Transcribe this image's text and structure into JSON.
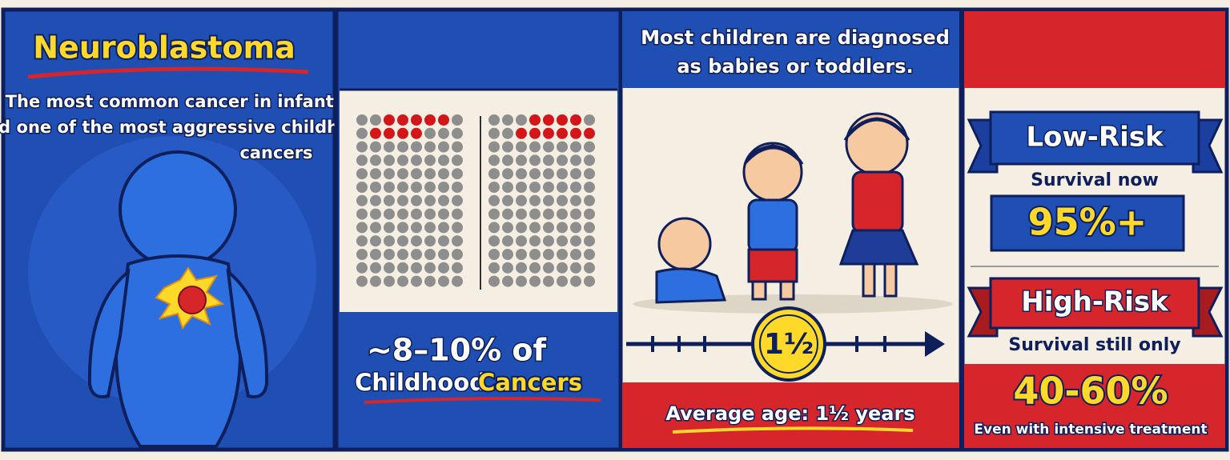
{
  "panel1": {
    "title": "Neuroblastoma",
    "subtitle_lines": [
      "The most common cancer in infants",
      "and one of the most aggressive childhood",
      "cancers"
    ]
  },
  "panel2": {
    "stat": "~8–10% of",
    "label_a": "Childhood",
    "label_b": "Cancers"
  },
  "panel3": {
    "heading_lines": [
      "Most children are diagnosed",
      "as babies or toddlers."
    ],
    "badge": "1½",
    "caption": "Average age: 1½ years"
  },
  "panel4": {
    "low_risk": {
      "title": "Low-Risk",
      "label": "Survival now",
      "value": "95%+"
    },
    "high_risk": {
      "title": "High-Risk",
      "label": "Survival still only",
      "value": "40-60%",
      "note": "Even with intensive treatment"
    }
  }
}
